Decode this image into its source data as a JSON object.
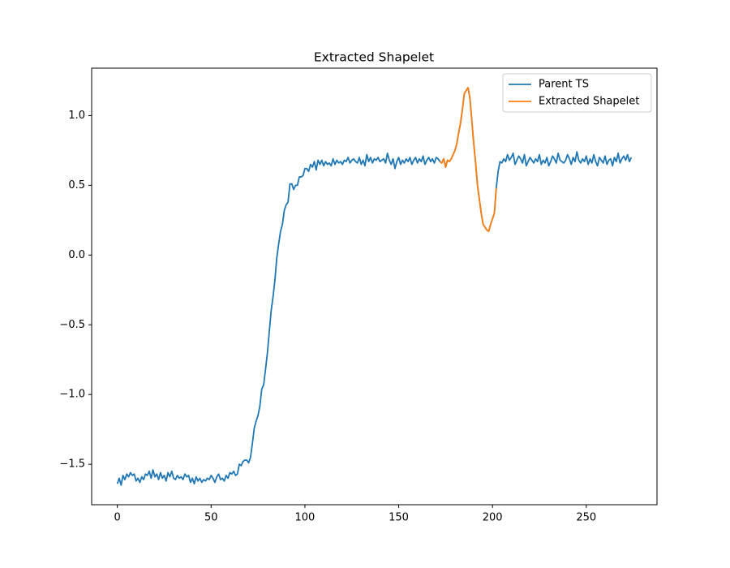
{
  "chart_data": {
    "type": "line",
    "title": "Extracted Shapelet",
    "xlim": [
      -13.7,
      287.7
    ],
    "ylim": [
      -1.79,
      1.34
    ],
    "xticks": [
      0,
      50,
      100,
      150,
      200,
      250
    ],
    "yticks": [
      {
        "value": -1.5,
        "label": "−1.5"
      },
      {
        "value": -1.0,
        "label": "−1.0"
      },
      {
        "value": -0.5,
        "label": "−0.5"
      },
      {
        "value": 0.0,
        "label": "0.0"
      },
      0.5,
      {
        "value": 1.0,
        "label": "1.0"
      }
    ],
    "grid": false,
    "legend": "upper right",
    "series": [
      {
        "name": "Parent TS",
        "color": "#1f77b4",
        "x": [
          0,
          1,
          2,
          3,
          4,
          5,
          6,
          7,
          8,
          9,
          10,
          11,
          12,
          13,
          14,
          15,
          16,
          17,
          18,
          19,
          20,
          21,
          22,
          23,
          24,
          25,
          26,
          27,
          28,
          29,
          30,
          31,
          32,
          33,
          34,
          35,
          36,
          37,
          38,
          39,
          40,
          41,
          42,
          43,
          44,
          45,
          46,
          47,
          48,
          49,
          50,
          51,
          52,
          53,
          54,
          55,
          56,
          57,
          58,
          59,
          60,
          61,
          62,
          63,
          64,
          65,
          66,
          67,
          68,
          69,
          70,
          71,
          72,
          73,
          74,
          75,
          76,
          77,
          78,
          79,
          80,
          81,
          82,
          83,
          84,
          85,
          86,
          87,
          88,
          89,
          90,
          91,
          92,
          93,
          94,
          95,
          96,
          97,
          98,
          99,
          100,
          101,
          102,
          103,
          104,
          105,
          106,
          107,
          108,
          109,
          110,
          111,
          112,
          113,
          114,
          115,
          116,
          117,
          118,
          119,
          120,
          121,
          122,
          123,
          124,
          125,
          126,
          127,
          128,
          129,
          130,
          131,
          132,
          133,
          134,
          135,
          136,
          137,
          138,
          139,
          140,
          141,
          142,
          143,
          144,
          145,
          146,
          147,
          148,
          149,
          150,
          151,
          152,
          153,
          154,
          155,
          156,
          157,
          158,
          159,
          160,
          161,
          162,
          163,
          164,
          165,
          166,
          167,
          168,
          169,
          170,
          171,
          172,
          173,
          174,
          175,
          176,
          177,
          178,
          179,
          180,
          181,
          182,
          183,
          184,
          185,
          186,
          187,
          188,
          189,
          190,
          191,
          192,
          193,
          194,
          195,
          196,
          197,
          198,
          199,
          200,
          201,
          202,
          203,
          204,
          205,
          206,
          207,
          208,
          209,
          210,
          211,
          212,
          213,
          214,
          215,
          216,
          217,
          218,
          219,
          220,
          221,
          222,
          223,
          224,
          225,
          226,
          227,
          228,
          229,
          230,
          231,
          232,
          233,
          234,
          235,
          236,
          237,
          238,
          239,
          240,
          241,
          242,
          243,
          244,
          245,
          246,
          247,
          248,
          249,
          250,
          251,
          252,
          253,
          254,
          255,
          256,
          257,
          258,
          259,
          260,
          261,
          262,
          263,
          264,
          265,
          266,
          267,
          268,
          269,
          270,
          271,
          272,
          273,
          274
        ],
        "values": [
          -1.64,
          -1.6,
          -1.65,
          -1.58,
          -1.61,
          -1.57,
          -1.59,
          -1.56,
          -1.58,
          -1.57,
          -1.62,
          -1.6,
          -1.63,
          -1.59,
          -1.61,
          -1.57,
          -1.58,
          -1.55,
          -1.6,
          -1.54,
          -1.59,
          -1.57,
          -1.61,
          -1.56,
          -1.6,
          -1.58,
          -1.62,
          -1.56,
          -1.59,
          -1.55,
          -1.6,
          -1.61,
          -1.58,
          -1.6,
          -1.59,
          -1.61,
          -1.57,
          -1.59,
          -1.58,
          -1.63,
          -1.6,
          -1.64,
          -1.59,
          -1.62,
          -1.6,
          -1.63,
          -1.61,
          -1.62,
          -1.6,
          -1.61,
          -1.58,
          -1.6,
          -1.63,
          -1.59,
          -1.57,
          -1.61,
          -1.6,
          -1.62,
          -1.58,
          -1.6,
          -1.56,
          -1.57,
          -1.55,
          -1.58,
          -1.57,
          -1.5,
          -1.51,
          -1.48,
          -1.47,
          -1.47,
          -1.49,
          -1.45,
          -1.35,
          -1.24,
          -1.19,
          -1.15,
          -1.08,
          -0.96,
          -0.93,
          -0.82,
          -0.7,
          -0.55,
          -0.4,
          -0.3,
          -0.18,
          -0.02,
          0.08,
          0.17,
          0.22,
          0.32,
          0.36,
          0.38,
          0.51,
          0.51,
          0.47,
          0.5,
          0.5,
          0.56,
          0.56,
          0.57,
          0.62,
          0.62,
          0.6,
          0.65,
          0.63,
          0.67,
          0.61,
          0.68,
          0.65,
          0.68,
          0.64,
          0.67,
          0.65,
          0.66,
          0.64,
          0.69,
          0.65,
          0.68,
          0.66,
          0.67,
          0.65,
          0.68,
          0.67,
          0.7,
          0.66,
          0.68,
          0.69,
          0.67,
          0.66,
          0.7,
          0.65,
          0.68,
          0.64,
          0.72,
          0.67,
          0.7,
          0.66,
          0.69,
          0.68,
          0.7,
          0.67,
          0.68,
          0.69,
          0.66,
          0.73,
          0.68,
          0.65,
          0.69,
          0.62,
          0.67,
          0.7,
          0.65,
          0.68,
          0.66,
          0.69,
          0.67,
          0.7,
          0.65,
          0.68,
          0.7,
          0.66,
          0.69,
          0.67,
          0.71,
          0.65,
          0.68,
          0.7,
          0.67,
          0.69,
          0.66,
          0.7,
          0.69,
          0.67,
          0.66,
          0.69,
          0.63,
          0.68,
          0.67,
          0.69,
          0.72,
          0.75,
          0.8,
          0.88,
          0.95,
          1.05,
          1.16,
          1.18,
          1.2,
          1.12,
          0.96,
          0.8,
          0.66,
          0.5,
          0.4,
          0.3,
          0.22,
          0.2,
          0.18,
          0.17,
          0.22,
          0.26,
          0.3,
          0.48,
          0.6,
          0.67,
          0.66,
          0.69,
          0.67,
          0.72,
          0.68,
          0.7,
          0.73,
          0.65,
          0.68,
          0.71,
          0.69,
          0.66,
          0.72,
          0.64,
          0.67,
          0.7,
          0.68,
          0.66,
          0.69,
          0.67,
          0.72,
          0.65,
          0.68,
          0.66,
          0.7,
          0.64,
          0.67,
          0.71,
          0.69,
          0.66,
          0.73,
          0.68,
          0.67,
          0.66,
          0.68,
          0.72,
          0.69,
          0.65,
          0.7,
          0.67,
          0.74,
          0.68,
          0.66,
          0.69,
          0.67,
          0.71,
          0.65,
          0.69,
          0.66,
          0.72,
          0.67,
          0.64,
          0.7,
          0.68,
          0.66,
          0.71,
          0.65,
          0.68,
          0.69,
          0.64,
          0.7,
          0.67,
          0.73,
          0.66,
          0.69,
          0.71,
          0.68,
          0.72,
          0.67,
          0.7
        ]
      },
      {
        "name": "Extracted Shapelet",
        "color": "#ff7f0e",
        "x": [
          172,
          173,
          174,
          175,
          176,
          177,
          178,
          179,
          180,
          181,
          182,
          183,
          184,
          185,
          186,
          187,
          188,
          189,
          190,
          191,
          192,
          193,
          194,
          195,
          196,
          197,
          198,
          199,
          200,
          201,
          202
        ],
        "values": [
          0.67,
          0.66,
          0.69,
          0.63,
          0.68,
          0.67,
          0.69,
          0.72,
          0.75,
          0.8,
          0.88,
          0.95,
          1.05,
          1.16,
          1.18,
          1.2,
          1.12,
          0.96,
          0.8,
          0.66,
          0.5,
          0.4,
          0.3,
          0.22,
          0.2,
          0.18,
          0.17,
          0.22,
          0.26,
          0.3,
          0.48
        ]
      }
    ]
  }
}
